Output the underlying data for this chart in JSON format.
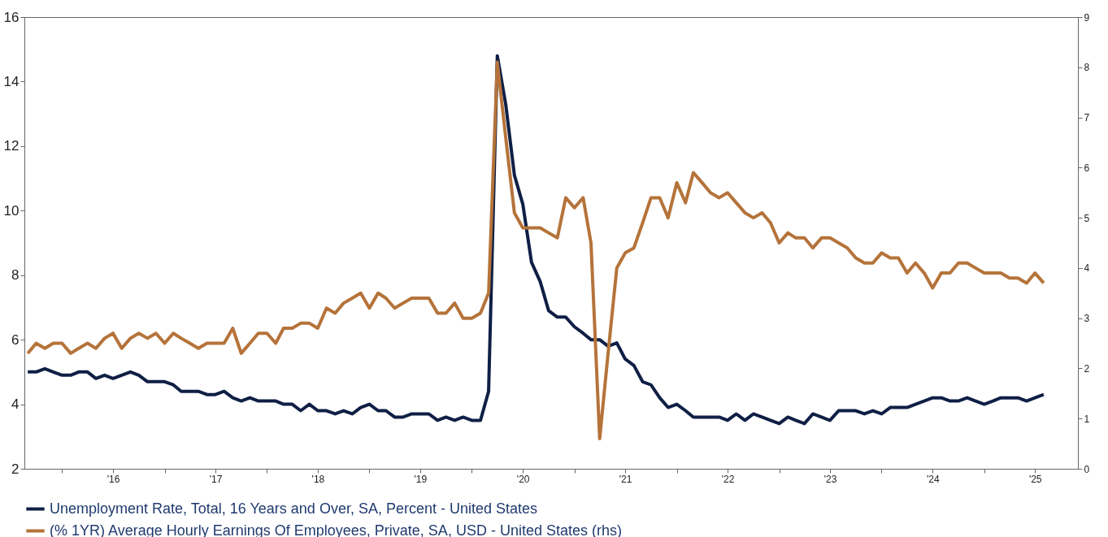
{
  "chart_data": {
    "type": "line",
    "x": [
      "2015-09",
      "2015-10",
      "2015-11",
      "2015-12",
      "2016-01",
      "2016-02",
      "2016-03",
      "2016-04",
      "2016-05",
      "2016-06",
      "2016-07",
      "2016-08",
      "2016-09",
      "2016-10",
      "2016-11",
      "2016-12",
      "2017-01",
      "2017-02",
      "2017-03",
      "2017-04",
      "2017-05",
      "2017-06",
      "2017-07",
      "2017-08",
      "2017-09",
      "2017-10",
      "2017-11",
      "2017-12",
      "2018-01",
      "2018-02",
      "2018-03",
      "2018-04",
      "2018-05",
      "2018-06",
      "2018-07",
      "2018-08",
      "2018-09",
      "2018-10",
      "2018-11",
      "2018-12",
      "2019-01",
      "2019-02",
      "2019-03",
      "2019-04",
      "2019-05",
      "2019-06",
      "2019-07",
      "2019-08",
      "2019-09",
      "2019-10",
      "2019-11",
      "2019-12",
      "2020-01",
      "2020-02",
      "2020-03",
      "2020-04",
      "2020-05",
      "2020-06",
      "2020-07",
      "2020-08",
      "2020-09",
      "2020-10",
      "2020-11",
      "2020-12",
      "2021-01",
      "2021-02",
      "2021-03",
      "2021-04",
      "2021-05",
      "2021-06",
      "2021-07",
      "2021-08",
      "2021-09",
      "2021-10",
      "2021-11",
      "2021-12",
      "2022-01",
      "2022-02",
      "2022-03",
      "2022-04",
      "2022-05",
      "2022-06",
      "2022-07",
      "2022-08",
      "2022-09",
      "2022-10",
      "2022-11",
      "2022-12",
      "2023-01",
      "2023-02",
      "2023-03",
      "2023-04",
      "2023-05",
      "2023-06",
      "2023-07",
      "2023-08",
      "2023-09",
      "2023-10",
      "2023-11",
      "2023-12",
      "2024-01",
      "2024-02",
      "2024-03",
      "2024-04",
      "2024-05",
      "2024-06",
      "2024-07",
      "2024-08",
      "2024-09",
      "2024-10",
      "2024-11",
      "2024-12",
      "2025-01",
      "2025-02",
      "2025-03",
      "2025-04",
      "2025-05",
      "2025-06",
      "2025-07",
      "2025-08"
    ],
    "series": [
      {
        "name": "Unemployment Rate, Total, 16 Years and Over, SA, Percent - United States",
        "color": "#0f1f45",
        "values": [
          5.0,
          5.0,
          5.1,
          5.0,
          4.9,
          4.9,
          5.0,
          5.0,
          4.8,
          4.9,
          4.8,
          4.9,
          5.0,
          4.9,
          4.7,
          4.7,
          4.7,
          4.6,
          4.4,
          4.4,
          4.4,
          4.3,
          4.3,
          4.4,
          4.2,
          4.1,
          4.2,
          4.1,
          4.1,
          4.1,
          4.0,
          4.0,
          3.8,
          4.0,
          3.8,
          3.8,
          3.7,
          3.8,
          3.7,
          3.9,
          4.0,
          3.8,
          3.8,
          3.6,
          3.6,
          3.7,
          3.7,
          3.7,
          3.5,
          3.6,
          3.5,
          3.6,
          3.5,
          3.5,
          4.4,
          14.8,
          13.3,
          11.1,
          10.2,
          8.4,
          7.8,
          6.9,
          6.7,
          6.7,
          6.4,
          6.2,
          6.0,
          6.0,
          5.8,
          5.9,
          5.4,
          5.2,
          4.7,
          4.6,
          4.2,
          3.9,
          4.0,
          3.8,
          3.6,
          3.6,
          3.6,
          3.6,
          3.5,
          3.7,
          3.5,
          3.7,
          3.6,
          3.5,
          3.4,
          3.6,
          3.5,
          3.4,
          3.7,
          3.6,
          3.5,
          3.8,
          3.8,
          3.8,
          3.7,
          3.8,
          3.7,
          3.9,
          3.9,
          3.9,
          4.0,
          4.1,
          4.2,
          4.2,
          4.1,
          4.1,
          4.2,
          4.1,
          4.0,
          4.1,
          4.2,
          4.2,
          4.2,
          4.1,
          4.2,
          4.3
        ]
      },
      {
        "name": "(% 1YR) Average Hourly Earnings Of Employees, Private, SA, USD - United States (rhs)",
        "color": "#b5733a",
        "axis": "y2",
        "values": [
          2.3,
          2.5,
          2.4,
          2.5,
          2.5,
          2.3,
          2.4,
          2.5,
          2.4,
          2.6,
          2.7,
          2.4,
          2.6,
          2.7,
          2.6,
          2.7,
          2.5,
          2.7,
          2.6,
          2.5,
          2.4,
          2.5,
          2.5,
          2.5,
          2.8,
          2.3,
          2.5,
          2.7,
          2.7,
          2.5,
          2.8,
          2.8,
          2.9,
          2.9,
          2.8,
          3.2,
          3.1,
          3.3,
          3.4,
          3.5,
          3.2,
          3.5,
          3.4,
          3.2,
          3.3,
          3.4,
          3.4,
          3.4,
          3.1,
          3.1,
          3.3,
          3.0,
          3.0,
          3.1,
          3.5,
          8.1,
          6.6,
          5.1,
          4.8,
          4.8,
          4.8,
          4.7,
          4.6,
          5.4,
          5.2,
          5.4,
          4.5,
          0.6,
          2.3,
          4.0,
          4.3,
          4.4,
          4.9,
          5.4,
          5.4,
          5.0,
          5.7,
          5.3,
          5.9,
          5.7,
          5.5,
          5.4,
          5.5,
          5.3,
          5.1,
          5.0,
          5.1,
          4.9,
          4.5,
          4.7,
          4.6,
          4.6,
          4.4,
          4.6,
          4.6,
          4.5,
          4.4,
          4.2,
          4.1,
          4.1,
          4.3,
          4.2,
          4.2,
          3.9,
          4.1,
          3.9,
          3.6,
          3.9,
          3.9,
          4.1,
          4.1,
          4.0,
          3.9,
          3.9,
          3.9,
          3.8,
          3.8,
          3.7,
          3.9,
          3.7
        ]
      }
    ],
    "xlim": [
      "2015-08-20",
      "2025-12-01"
    ],
    "xticks": [
      {
        "value": "2016-01",
        "label": null
      },
      {
        "value": "2016-07",
        "label": "'16"
      },
      {
        "value": "2017-01",
        "label": null
      },
      {
        "value": "2017-07",
        "label": "'17"
      },
      {
        "value": "2018-01",
        "label": null
      },
      {
        "value": "2018-07",
        "label": "'18"
      },
      {
        "value": "2019-01",
        "label": null
      },
      {
        "value": "2019-07",
        "label": "'19"
      },
      {
        "value": "2020-01",
        "label": null
      },
      {
        "value": "2020-07",
        "label": "'20"
      },
      {
        "value": "2021-01",
        "label": null
      },
      {
        "value": "2021-07",
        "label": "'21"
      },
      {
        "value": "2022-01",
        "label": null
      },
      {
        "value": "2022-07",
        "label": "'22"
      },
      {
        "value": "2023-01",
        "label": null
      },
      {
        "value": "2023-07",
        "label": "'23"
      },
      {
        "value": "2024-01",
        "label": null
      },
      {
        "value": "2024-07",
        "label": "'24"
      },
      {
        "value": "2025-01",
        "label": null
      },
      {
        "value": "2025-07",
        "label": "'25"
      }
    ],
    "ylim": [
      2,
      16
    ],
    "yticks": [
      2,
      4,
      6,
      8,
      10,
      12,
      14,
      16
    ],
    "y2lim": [
      0,
      9
    ],
    "y2ticks": [
      0,
      1,
      2,
      3,
      4,
      5,
      6,
      7,
      8,
      9
    ],
    "grid": false,
    "legend": "bottom",
    "line_style": "solid",
    "marker": "none"
  }
}
